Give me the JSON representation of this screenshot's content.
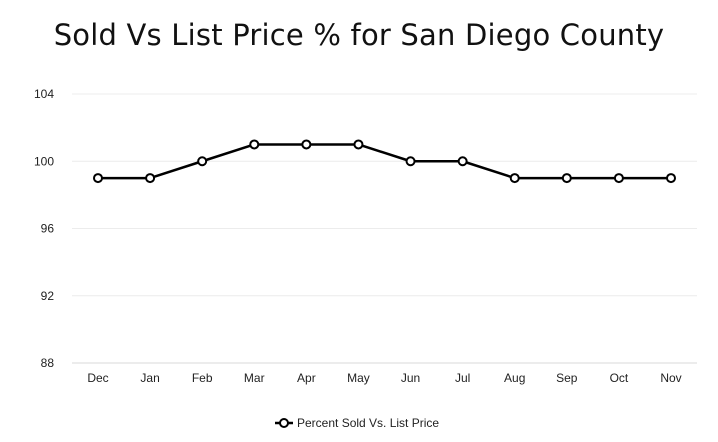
{
  "chart_data": {
    "type": "line",
    "title": "Sold Vs List Price % for San Diego County",
    "xlabel": "",
    "ylabel": "",
    "categories": [
      "Dec",
      "Jan",
      "Feb",
      "Mar",
      "Apr",
      "May",
      "Jun",
      "Jul",
      "Aug",
      "Sep",
      "Oct",
      "Nov"
    ],
    "series": [
      {
        "name": "Percent Sold Vs. List Price",
        "values": [
          99,
          99,
          100,
          101,
          101,
          101,
          100,
          100,
          99,
          99,
          99,
          99
        ],
        "color": "#000000"
      }
    ],
    "ylim": [
      88,
      104
    ],
    "yticks": [
      "88",
      "92",
      "96",
      "100",
      "104"
    ],
    "grid": true,
    "legend": "bottom-center"
  }
}
